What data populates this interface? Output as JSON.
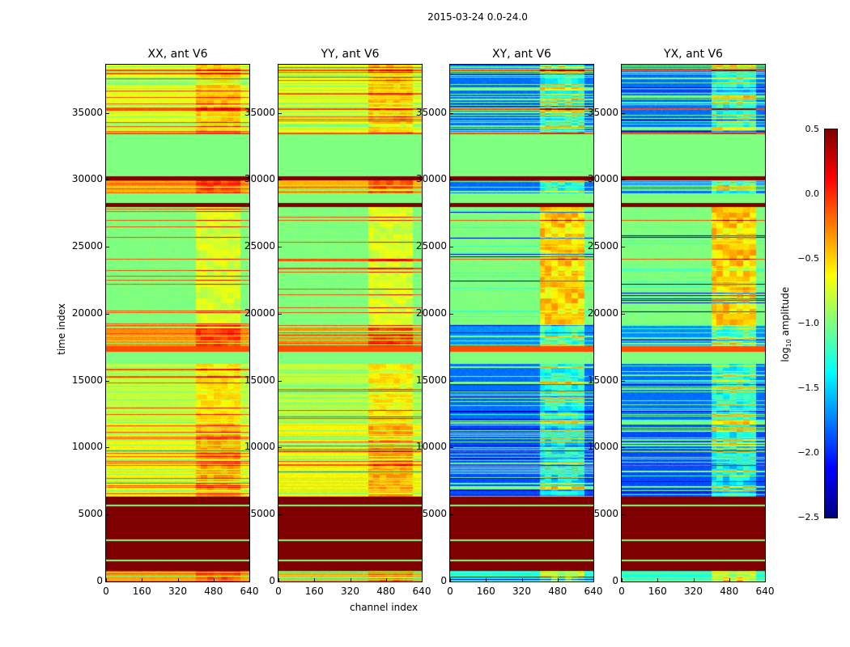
{
  "chart_data": {
    "type": "heatmap",
    "suptitle": "2015-03-24 0.0-24.0",
    "xlabel": "channel index",
    "ylabel": "time index",
    "xlim": [
      0,
      640
    ],
    "ylim": [
      0,
      38600
    ],
    "xticks": [
      "0",
      "160",
      "320",
      "480",
      "640"
    ],
    "yticks": [
      "0",
      "5000",
      "10000",
      "15000",
      "20000",
      "25000",
      "30000",
      "35000"
    ],
    "panels": [
      {
        "title": "XX, ant V6",
        "group": "parallel"
      },
      {
        "title": "YY, ant V6",
        "group": "parallel"
      },
      {
        "title": "XY, ant V6",
        "group": "cross"
      },
      {
        "title": "YX, ant V6",
        "group": "cross"
      }
    ],
    "colorbar": {
      "label_main": "log",
      "label_sub": "10",
      "label_rest": " amplitude",
      "range": [
        -2.5,
        0.5
      ],
      "ticks": [
        "0.5",
        "0.0",
        "−0.5",
        "−1.0",
        "−1.5",
        "−2.0",
        "−2.5"
      ],
      "colormap": "jet"
    },
    "bands": [
      {
        "t": [
          0,
          800
        ],
        "parallel": -0.35,
        "cross": -1.3,
        "stripes": true
      },
      {
        "t": [
          800,
          6400
        ],
        "parallel": 0.5,
        "cross": 0.5,
        "stripes": false
      },
      {
        "t": [
          6400,
          11800
        ],
        "parallel": -0.6,
        "cross": -1.9,
        "stripes": true
      },
      {
        "t": [
          11800,
          16300
        ],
        "parallel": -0.8,
        "cross": -1.8,
        "stripes": true
      },
      {
        "t": [
          16300,
          17200
        ],
        "parallel": -1.0,
        "cross": -1.0,
        "stripes": false
      },
      {
        "t": [
          17200,
          17600
        ],
        "parallel": -0.1,
        "cross": -0.1,
        "stripes": false
      },
      {
        "t": [
          17600,
          19200
        ],
        "parallel": -0.3,
        "cross": -1.7,
        "stripes": true
      },
      {
        "t": [
          19200,
          28000
        ],
        "parallel": -1.0,
        "cross": -1.0,
        "stripes": true
      },
      {
        "t": [
          28000,
          28300
        ],
        "parallel": 0.5,
        "cross": 0.5,
        "stripes": false
      },
      {
        "t": [
          28300,
          29000
        ],
        "parallel": -1.0,
        "cross": -1.0,
        "stripes": false
      },
      {
        "t": [
          29000,
          30000
        ],
        "parallel": -0.4,
        "cross": -1.8,
        "stripes": true
      },
      {
        "t": [
          30000,
          30300
        ],
        "parallel": 0.5,
        "cross": 0.5,
        "stripes": false
      },
      {
        "t": [
          30300,
          33500
        ],
        "parallel": -1.0,
        "cross": -1.0,
        "stripes": false
      },
      {
        "t": [
          33500,
          38600
        ],
        "parallel": -0.7,
        "cross": -1.8,
        "stripes": true
      }
    ],
    "thin_lines": [
      {
        "t": 1600,
        "value": -1.0
      },
      {
        "t": 3100,
        "value": -1.0
      },
      {
        "t": 5700,
        "value": -1.0
      },
      {
        "t": 8700,
        "value": -0.1
      },
      {
        "t": 9800,
        "value": -0.1
      },
      {
        "t": 24100,
        "value": -0.1
      },
      {
        "t": 27000,
        "value": -0.1
      },
      {
        "t": 33500,
        "value": -0.1
      },
      {
        "t": 35300,
        "value": -0.1
      },
      {
        "t": 38200,
        "value": -0.1
      }
    ],
    "rfi_channels": [
      400,
      600
    ]
  }
}
